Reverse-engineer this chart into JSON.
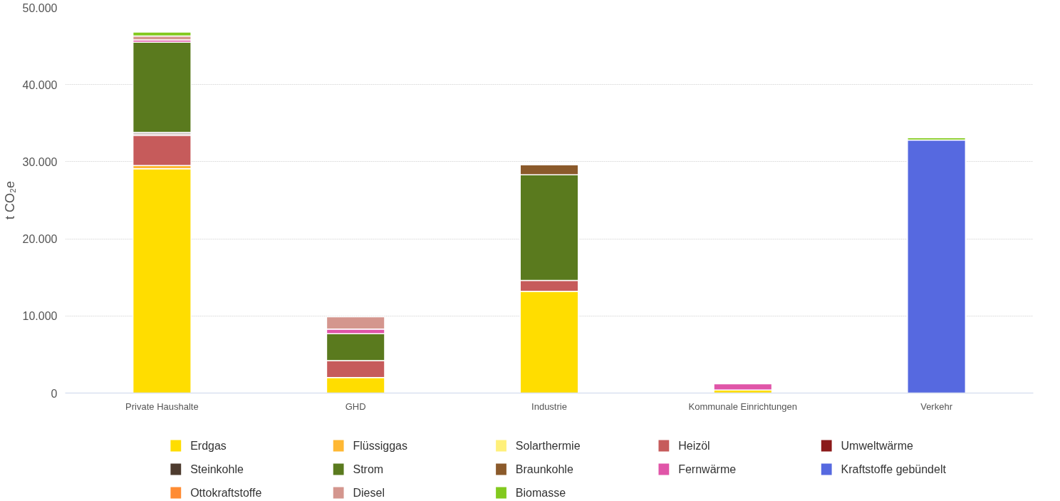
{
  "chart_data": {
    "type": "bar",
    "stacked": true,
    "ylabel": "t CO₂e",
    "categories": [
      "Private Haushalte",
      "GHD",
      "Industrie",
      "Kommunale Einrichtungen",
      "Verkehr"
    ],
    "ylim": [
      0,
      50000
    ],
    "yticks": [
      {
        "value": 0,
        "label": "0"
      },
      {
        "value": 10000,
        "label": "10.000"
      },
      {
        "value": 20000,
        "label": "20.000"
      },
      {
        "value": 30000,
        "label": "30.000"
      },
      {
        "value": 40000,
        "label": "40.000"
      },
      {
        "value": 50000,
        "label": "50.000"
      }
    ],
    "grid": "y",
    "legend": "bottom",
    "series": [
      {
        "name": "Erdgas",
        "color": "#ffdd00",
        "values": [
          29100,
          2000,
          13200,
          400,
          0
        ]
      },
      {
        "name": "Flüssiggas",
        "color": "#ffb833",
        "values": [
          400,
          0,
          0,
          0,
          0
        ]
      },
      {
        "name": "Solarthermie",
        "color": "#fff07a",
        "values": [
          0,
          0,
          0,
          0,
          0
        ]
      },
      {
        "name": "Heizöl",
        "color": "#c65b5b",
        "values": [
          3900,
          2200,
          1400,
          0,
          0
        ]
      },
      {
        "name": "Umweltwärme",
        "color": "#8b1a1a",
        "values": [
          200,
          0,
          0,
          0,
          0
        ]
      },
      {
        "name": "Steinkohle",
        "color": "#4d3b2e",
        "values": [
          200,
          0,
          0,
          0,
          0
        ]
      },
      {
        "name": "Strom",
        "color": "#5a7a1e",
        "values": [
          11700,
          3500,
          13700,
          0,
          0
        ]
      },
      {
        "name": "Braunkohle",
        "color": "#8b5a2b",
        "values": [
          0,
          0,
          1300,
          0,
          0
        ]
      },
      {
        "name": "Fernwärme",
        "color": "#e055a8",
        "values": [
          300,
          600,
          0,
          800,
          0
        ]
      },
      {
        "name": "Kraftstoffe gebündelt",
        "color": "#5669e0",
        "values": [
          0,
          0,
          0,
          0,
          32800
        ]
      },
      {
        "name": "Ottokraftstoffe",
        "color": "#ff8c33",
        "values": [
          0,
          0,
          0,
          0,
          0
        ]
      },
      {
        "name": "Diesel",
        "color": "#d4968e",
        "values": [
          500,
          1600,
          0,
          0,
          0
        ]
      },
      {
        "name": "Biomasse",
        "color": "#82c91e",
        "values": [
          500,
          0,
          0,
          0,
          300
        ]
      }
    ]
  }
}
